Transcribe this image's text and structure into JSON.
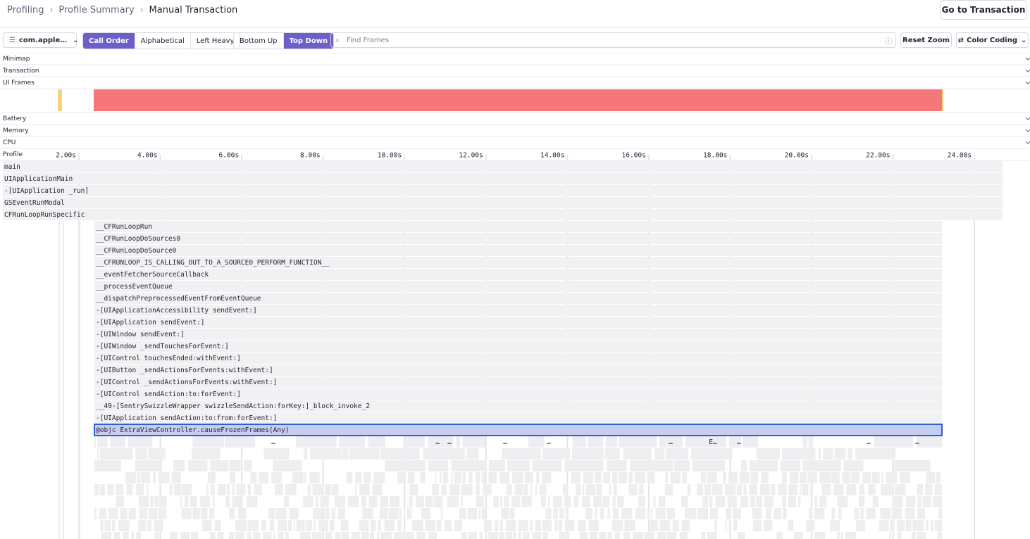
{
  "breadcrumbs": [
    "Profiling",
    "Profile Summary",
    "Manual Transaction"
  ],
  "header_button": "Go to Transaction",
  "toolbar": {
    "thread": "com.apple…",
    "sort": [
      "Call Order",
      "Alphabetical",
      "Left Heavy"
    ],
    "view": [
      "Bottom Up",
      "Top Down"
    ],
    "search_placeholder": "Find Frames",
    "reset_zoom": "Reset Zoom",
    "color_coding": "Color Coding"
  },
  "panels": [
    "Minimap",
    "Transaction",
    "UI Frames",
    "Battery",
    "Memory",
    "CPU",
    "Profile"
  ],
  "timeline_ticks": [
    "2.00s",
    "4.00s",
    "6.00s",
    "8.00s",
    "10.00s",
    "12.00s",
    "14.00s",
    "16.00s",
    "18.00s",
    "20.00s",
    "22.00s",
    "24.00s"
  ],
  "root_frames": [
    "main",
    "UIApplicationMain",
    "-[UIApplication _run]",
    "GSEventRunModal",
    "CFRunLoopRunSpecific"
  ],
  "frames": [
    "__CFRunLoopRun",
    "__CFRunLoopDoSources0",
    "__CFRunLoopDoSource0",
    "__CFRUNLOOP_IS_CALLING_OUT_TO_A_SOURCE0_PERFORM_FUNCTION__",
    "__eventFetcherSourceCallback",
    "__processEventQueue",
    "__dispatchPreprocessedEventFromEventQueue",
    "-[UIApplicationAccessibility sendEvent:]",
    "-[UIApplication sendEvent:]",
    "-[UIWindow sendEvent:]",
    "-[UIWindow _sendTouchesForEvent:]",
    "-[UIControl touchesEnded:withEvent:]",
    "-[UIButton _sendActionsForEvents:withEvent:]",
    "-[UIControl _sendActionsForEvents:withEvent:]",
    "-[UIControl sendAction:to:forEvent:]",
    "__49-[SentrySwizzleWrapper swizzleSendAction:forKey:]_block_invoke_2",
    "-[UIApplication sendAction:to:from:forEvent:]",
    "@objc ExtraViewController.causeFrozenFrames(Any)"
  ],
  "child_labels": [
    "…",
    "…",
    "…",
    "…",
    "…",
    "…",
    "E…",
    "…",
    "…",
    "…"
  ]
}
